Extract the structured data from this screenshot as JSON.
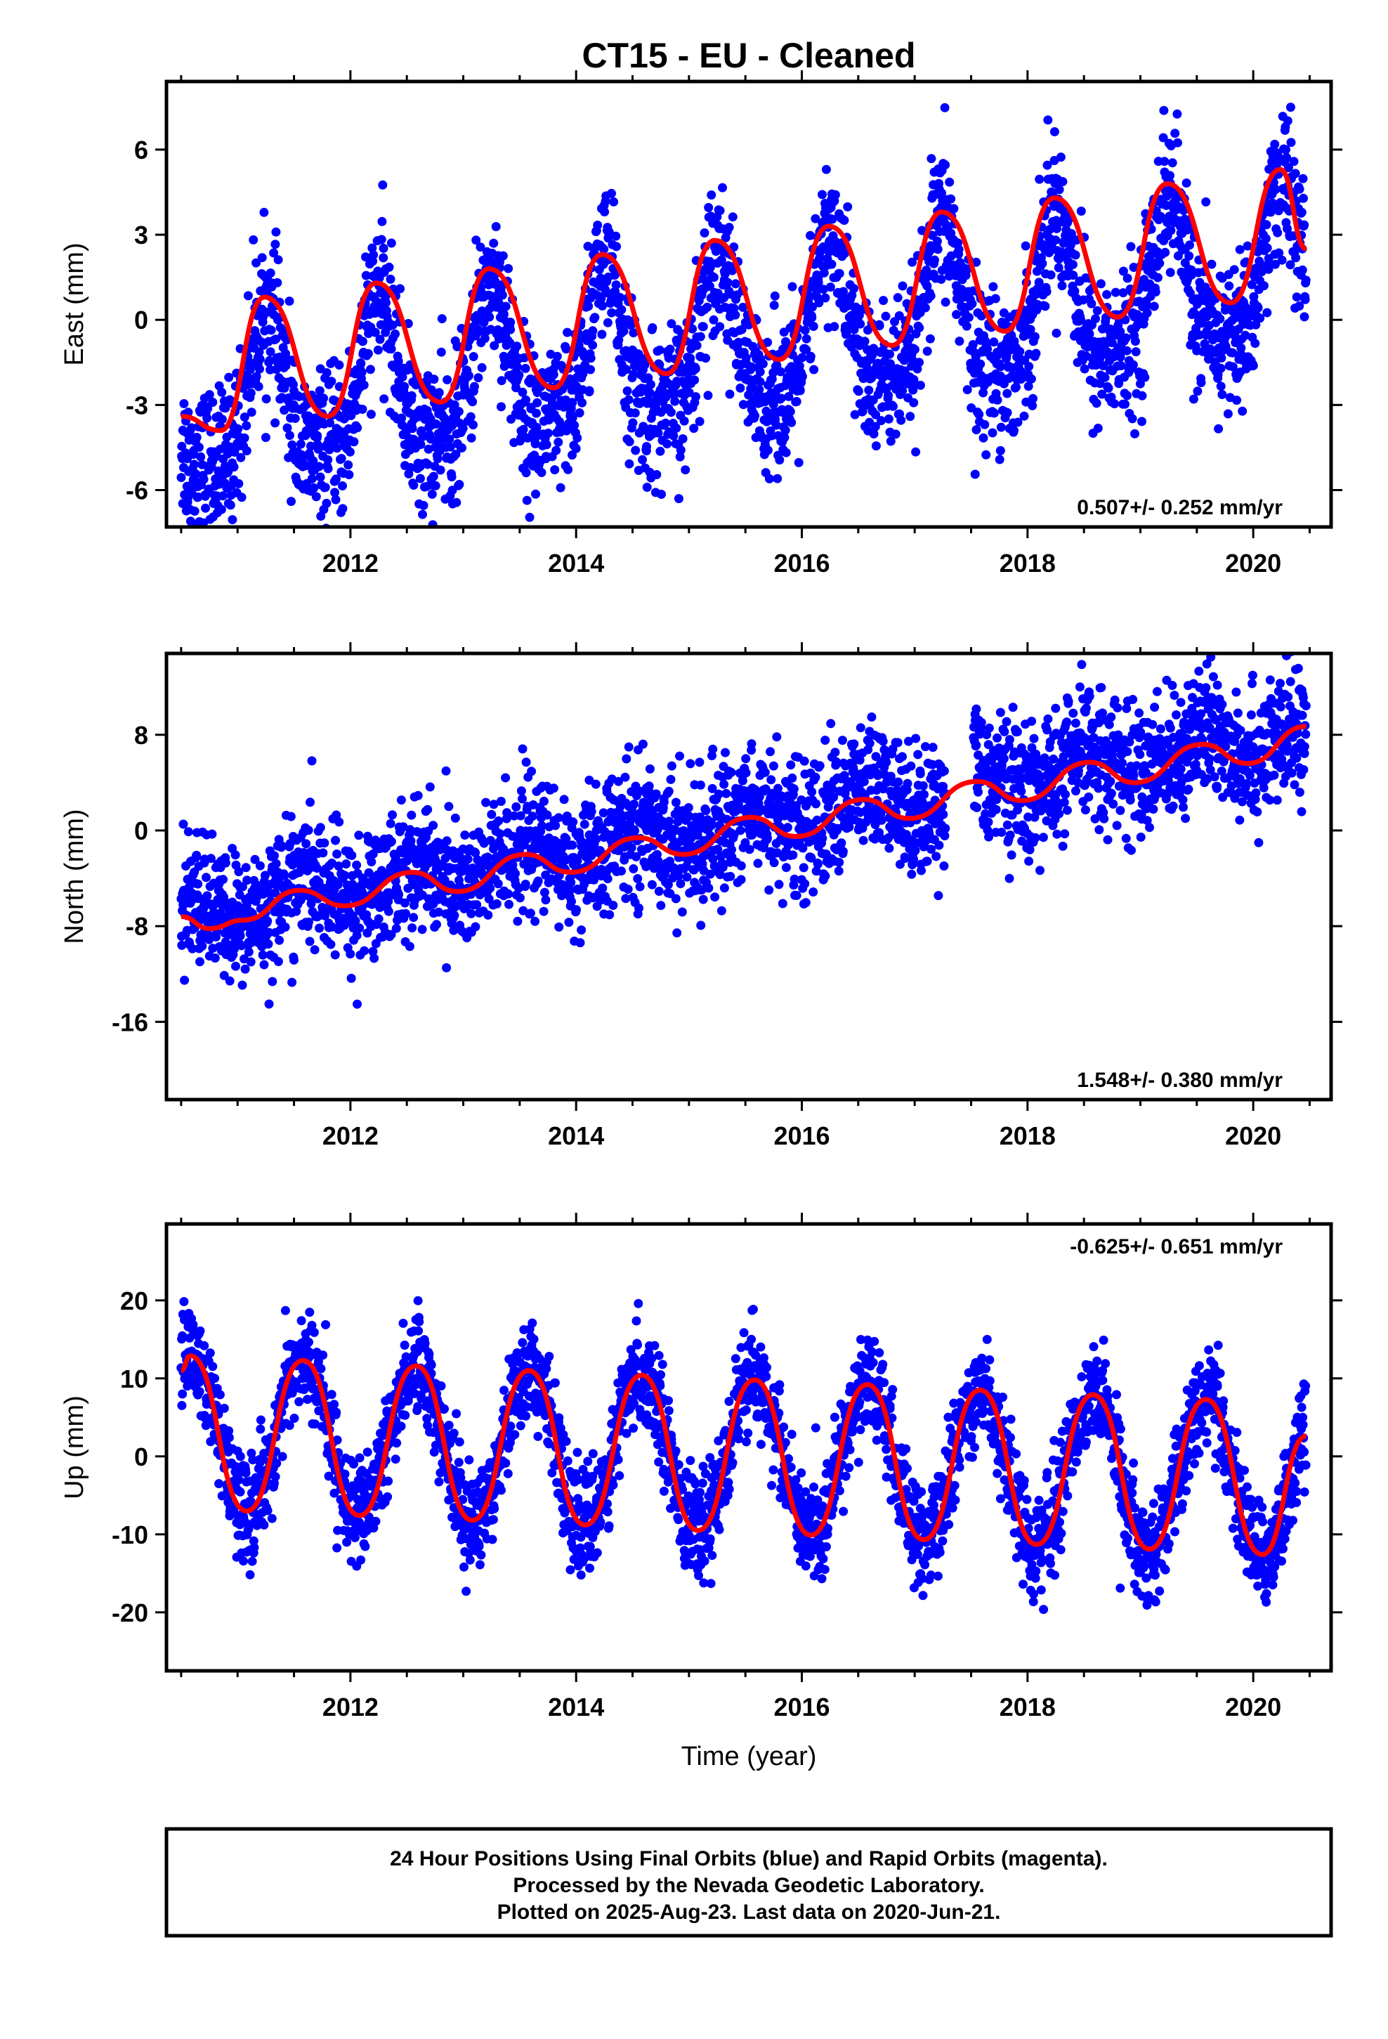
{
  "title": "CT15  - EU - Cleaned",
  "xlabel": "Time (year)",
  "colors": {
    "points": "#0000ff",
    "fit": "#ff0000",
    "frame": "#000000"
  },
  "footer": {
    "line1": "24 Hour Positions Using Final Orbits (blue) and Rapid Orbits (magenta).",
    "line2": "Processed by the Nevada Geodetic Laboratory.",
    "line3": "Plotted on 2025-Aug-23. Last data on 2020-Jun-21."
  },
  "chart_data": [
    {
      "type": "scatter",
      "ylabel": "East (mm)",
      "rate_label": "0.507+/- 0.252 mm/yr",
      "xlim": [
        2010.37,
        2020.69
      ],
      "ylim": [
        -7.3,
        8.4
      ],
      "x_ticks": [
        2012,
        2014,
        2016,
        2018,
        2020
      ],
      "x_tick_labels": [
        "2012",
        "2014",
        "2016",
        "2018",
        "2020"
      ],
      "y_ticks": [
        6,
        3,
        0,
        -3,
        -6
      ],
      "y_tick_labels": [
        "6",
        "3",
        "0",
        "-3",
        "-6"
      ],
      "series": [
        {
          "kind": "scatter",
          "x_range": [
            2010.5,
            2020.47
          ],
          "model": {
            "offset": -3.4,
            "rate": 0.507,
            "annual_amp": 2.6,
            "annual_peak": 0.25,
            "semiannual_amp": 0.8,
            "noise": 1.3
          }
        },
        {
          "kind": "fit",
          "x": [
            2010.5,
            2010.85,
            2011.24,
            2011.8,
            2012.23,
            2012.8,
            2013.23,
            2013.8,
            2014.23,
            2014.8,
            2015.23,
            2015.8,
            2016.24,
            2016.8,
            2017.24,
            2017.8,
            2018.24,
            2018.8,
            2019.24,
            2019.8,
            2020.24,
            2020.47
          ],
          "y": [
            -3.4,
            -3.9,
            0.8,
            -3.4,
            1.3,
            -2.9,
            1.8,
            -2.4,
            2.3,
            -1.9,
            2.8,
            -1.4,
            3.3,
            -0.9,
            3.8,
            -0.4,
            4.3,
            0.1,
            4.8,
            0.6,
            5.3,
            2.5
          ]
        }
      ]
    },
    {
      "type": "scatter",
      "ylabel": "North (mm)",
      "rate_label": "1.548+/- 0.380 mm/yr",
      "xlim": [
        2010.37,
        2020.69
      ],
      "ylim": [
        -22.5,
        14.8
      ],
      "x_ticks": [
        2012,
        2014,
        2016,
        2018,
        2020
      ],
      "x_tick_labels": [
        "2012",
        "2014",
        "2016",
        "2018",
        "2020"
      ],
      "y_ticks": [
        8,
        0,
        -8,
        -16
      ],
      "y_tick_labels": [
        "8",
        "0",
        "-8",
        "-16"
      ],
      "series": [
        {
          "kind": "scatter",
          "x_range": [
            2010.5,
            2020.47
          ],
          "model": {
            "offset": -7.2,
            "rate": 1.548,
            "annual_amp": 1.3,
            "annual_peak": 0.55,
            "semiannual_amp": 0,
            "noise": 2.7
          }
        },
        {
          "kind": "fit",
          "x": [
            2010.5,
            2010.75,
            2011.05,
            2011.55,
            2011.95,
            2012.55,
            2012.95,
            2013.55,
            2013.95,
            2014.55,
            2014.95,
            2015.55,
            2015.95,
            2016.55,
            2016.95,
            2017.55,
            2017.95,
            2018.55,
            2018.95,
            2019.55,
            2019.95,
            2020.47
          ],
          "y": [
            -7.2,
            -8.2,
            -7.5,
            -5.0,
            -6.3,
            -3.5,
            -5.1,
            -2.0,
            -3.5,
            -0.6,
            -2.0,
            1.1,
            -0.5,
            2.6,
            1.0,
            4.1,
            2.5,
            5.7,
            4.0,
            7.2,
            5.6,
            8.7
          ]
        }
      ]
    },
    {
      "type": "scatter",
      "ylabel": "Up (mm)",
      "rate_label": "-0.625+/- 0.651 mm/yr",
      "xlabel": "Time (year)",
      "xlim": [
        2010.37,
        2020.69
      ],
      "ylim": [
        -27.5,
        29.8
      ],
      "x_ticks": [
        2012,
        2014,
        2016,
        2018,
        2020
      ],
      "x_tick_labels": [
        "2012",
        "2014",
        "2016",
        "2018",
        "2020"
      ],
      "y_ticks": [
        20,
        10,
        0,
        -10,
        -20
      ],
      "y_tick_labels": [
        "20",
        "10",
        "0",
        "-10",
        "-20"
      ],
      "series": [
        {
          "kind": "scatter",
          "x_range": [
            2010.5,
            2020.47
          ],
          "model": {
            "offset": 3.1,
            "rate": -0.625,
            "annual_amp": 10.0,
            "annual_peak": 0.58,
            "semiannual_amp": 0,
            "noise": 3.2
          }
        },
        {
          "kind": "fit",
          "x": [
            2010.5,
            2010.58,
            2011.08,
            2011.58,
            2012.08,
            2012.58,
            2013.08,
            2013.58,
            2014.08,
            2014.58,
            2015.08,
            2015.58,
            2016.08,
            2016.58,
            2017.08,
            2017.58,
            2018.08,
            2018.58,
            2019.08,
            2019.58,
            2020.08,
            2020.47
          ],
          "y": [
            11.0,
            12.9,
            -7.0,
            12.3,
            -7.6,
            11.6,
            -8.2,
            11.0,
            -8.8,
            10.4,
            -9.5,
            9.8,
            -10.1,
            9.2,
            -10.7,
            8.5,
            -11.3,
            7.9,
            -11.9,
            7.3,
            -12.6,
            2.6
          ]
        }
      ]
    }
  ]
}
